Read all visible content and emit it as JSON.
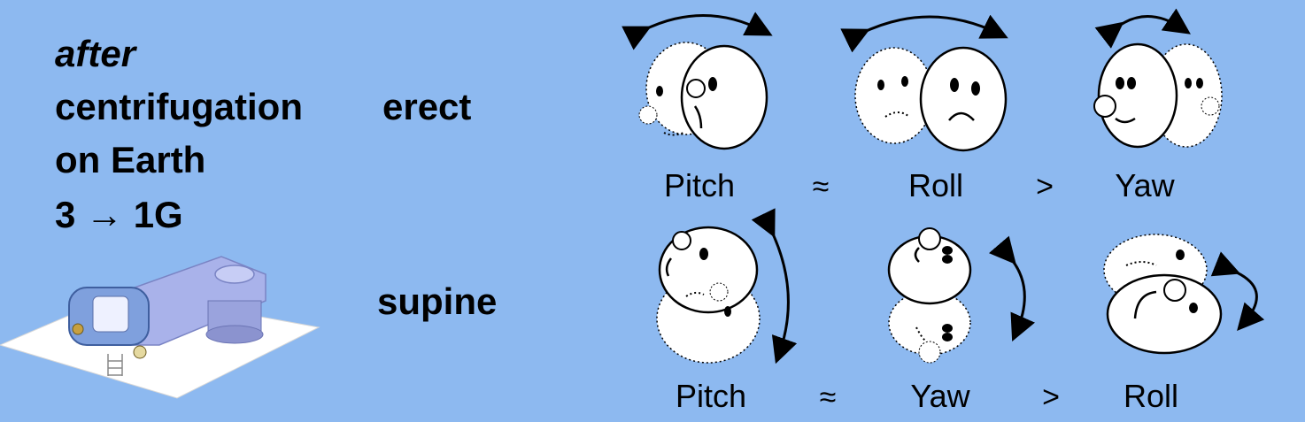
{
  "left_panel": {
    "line1": "after",
    "line2": "centrifugation",
    "line3": "on Earth",
    "line4_num": "3",
    "line4_arrow": "→",
    "line4_end": "1G"
  },
  "conditions": {
    "erect": "erect",
    "supine": "supine"
  },
  "rows": [
    {
      "name": "erect",
      "labels": [
        "Pitch",
        "≈",
        "Roll",
        ">",
        "Yaw"
      ]
    },
    {
      "name": "supine",
      "labels": [
        "Pitch",
        "≈",
        "Yaw",
        ">",
        "Roll"
      ]
    }
  ],
  "colors": {
    "background": "#8db9f0",
    "face": "#ffffff",
    "stroke": "#000000",
    "platform": "#ffffff",
    "device": "#a9b2ea"
  }
}
